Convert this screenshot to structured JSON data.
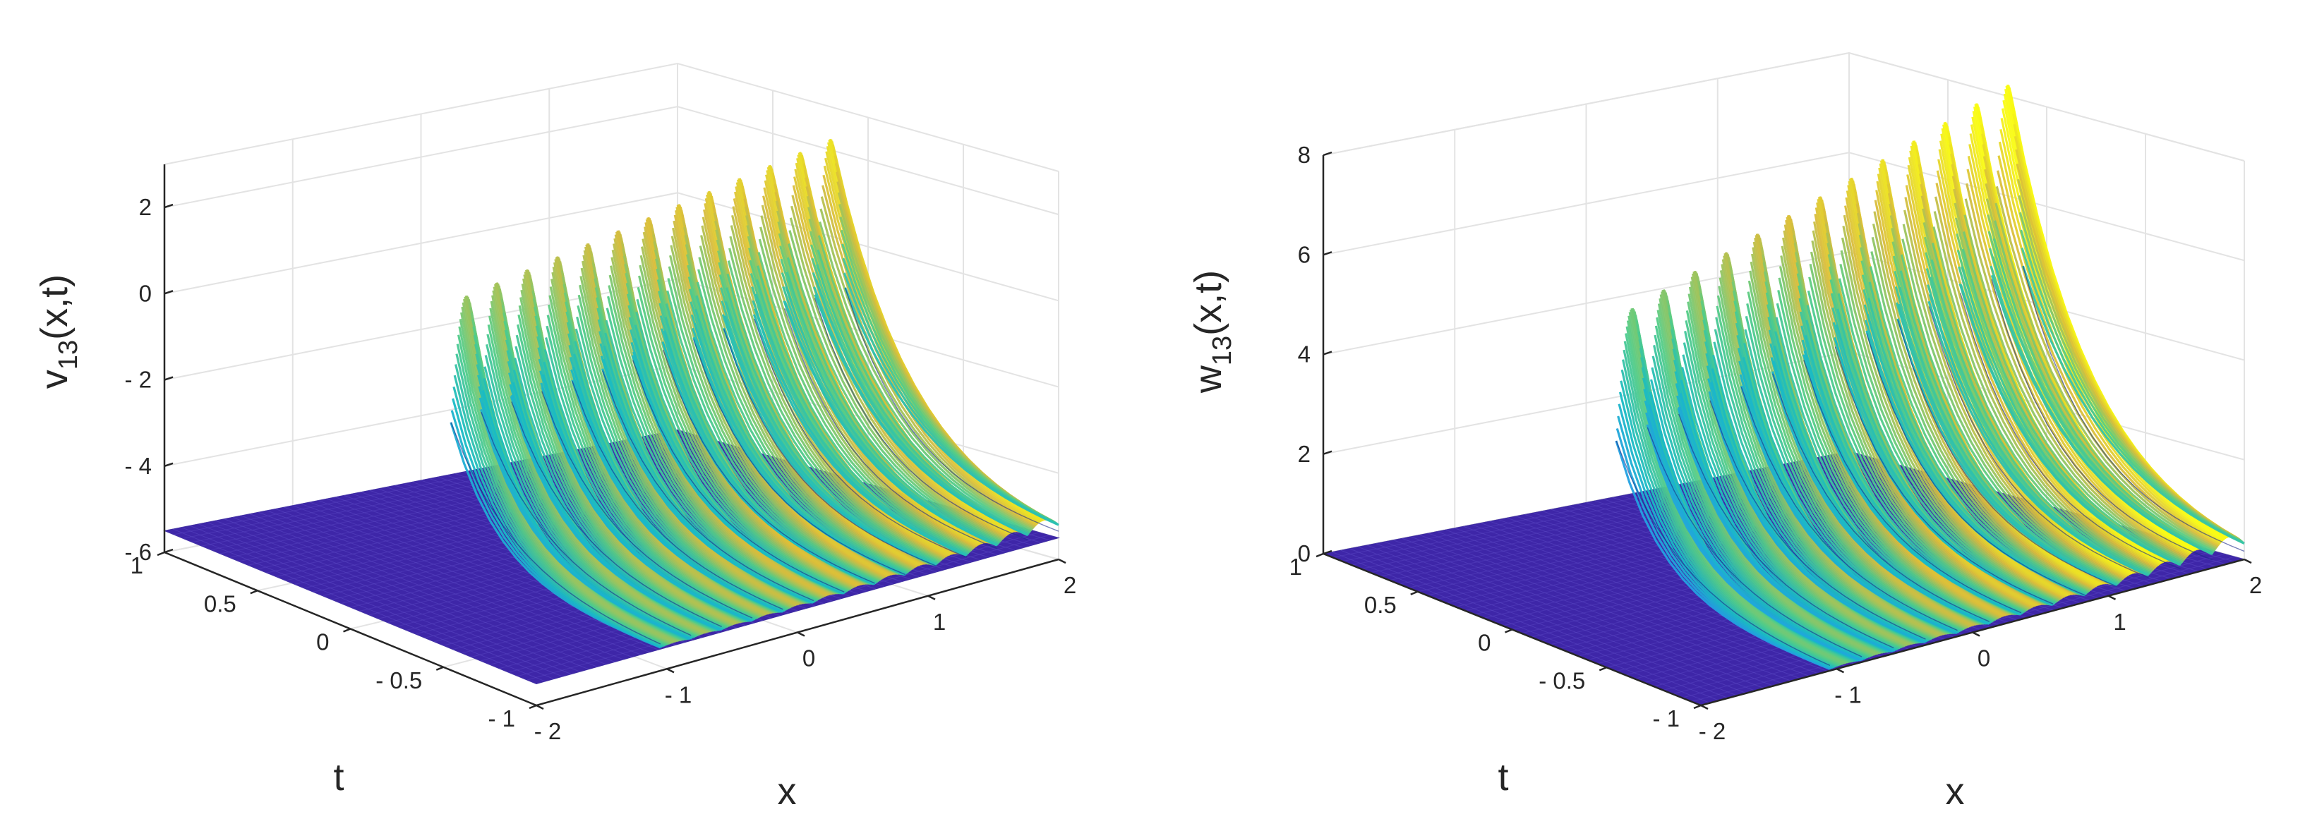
{
  "chart_data": [
    {
      "type": "surface",
      "name": "v13",
      "zlabel_main": "v",
      "zlabel_sub": "13",
      "zlabel_tail": "(x,t)",
      "xlabel": "x",
      "ylabel": "t",
      "xlim": [
        -2,
        2
      ],
      "ylim": [
        -1,
        1
      ],
      "zlim": [
        -6,
        3
      ],
      "xticks": [
        "- 2",
        "- 1",
        "0",
        "1",
        "2"
      ],
      "xtick_values": [
        -2,
        -1,
        0,
        1,
        2
      ],
      "yticks": [
        "- 1",
        "- 0.5",
        "0",
        "0.5",
        "1"
      ],
      "ytick_values": [
        -1,
        -0.5,
        0,
        0.5,
        1
      ],
      "zticks": [
        "- 6",
        "- 4",
        "- 2",
        "0",
        "2"
      ],
      "ztick_values": [
        -6,
        -4,
        -2,
        0,
        2
      ],
      "baseline": -5.5,
      "crest_start": 0.7,
      "crest_end": 2.5,
      "lobes": 13,
      "colormap": [
        "#3e26a8",
        "#4a5cf0",
        "#2797ec",
        "#19bbc4",
        "#55cc86",
        "#d9bd3c",
        "#f9fb14"
      ]
    },
    {
      "type": "surface",
      "name": "w13",
      "zlabel_main": "w",
      "zlabel_sub": "13",
      "zlabel_tail": "(x,t)",
      "xlabel": "x",
      "ylabel": "t",
      "xlim": [
        -2,
        2
      ],
      "ylim": [
        -1,
        1
      ],
      "zlim": [
        0,
        8
      ],
      "xticks": [
        "- 2",
        "- 1",
        "0",
        "1",
        "2"
      ],
      "xtick_values": [
        -2,
        -1,
        0,
        1,
        2
      ],
      "yticks": [
        "- 1",
        "- 0.5",
        "0",
        "0.5",
        "1"
      ],
      "ytick_values": [
        -1,
        -0.5,
        0,
        0.5,
        1
      ],
      "zticks": [
        "0",
        "2",
        "4",
        "6",
        "8"
      ],
      "ztick_values": [
        0,
        2,
        4,
        6,
        8
      ],
      "baseline": 0,
      "crest_start": 5.5,
      "crest_end": 8.5,
      "lobes": 13,
      "colormap": [
        "#3e26a8",
        "#4a5cf0",
        "#2797ec",
        "#19bbc4",
        "#55cc86",
        "#d9bd3c",
        "#f9fb14"
      ]
    }
  ]
}
